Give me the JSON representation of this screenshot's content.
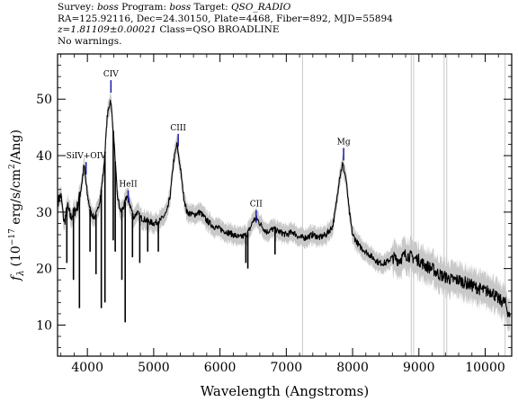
{
  "header": {
    "line1": {
      "survey_label": "Survey:",
      "survey_value": "boss",
      "program_label": "Program:",
      "program_value": "boss",
      "target_label": "Target:",
      "target_value": "QSO_RADIO"
    },
    "line2": "RA=125.92116, Dec=24.30150, Plate=4468, Fiber=892, MJD=55894",
    "line3": {
      "redshift": "z=1.81109±0.00021",
      "class_text": "Class=QSO BROADLINE"
    },
    "line4": "No warnings."
  },
  "chart_data": {
    "type": "line",
    "title": "",
    "xlabel": "Wavelength (Angstroms)",
    "ylabel": "f_λ (10^-17 erg/s/cm^2/Ang)",
    "ylabel_parts": {
      "f": "f",
      "sub": "λ",
      "pre": "(10",
      "exp1": "−17",
      "mid": " erg/s/cm",
      "exp2": "2",
      "post": "/Ang)"
    },
    "xlim": [
      3550,
      10400
    ],
    "ylim": [
      4.5,
      58
    ],
    "x_ticks": [
      4000,
      5000,
      6000,
      7000,
      8000,
      9000,
      10000
    ],
    "x_tick_labels": [
      "4000",
      "5000",
      "6000",
      "7000",
      "8000",
      "9000",
      "10000"
    ],
    "y_ticks": [
      10,
      20,
      30,
      40,
      50
    ],
    "y_tick_labels": [
      "10",
      "20",
      "30",
      "40",
      "50"
    ],
    "grid": false,
    "line_color": "#000000",
    "error_color": "#c8c8c8",
    "marker_color": "#1a1aa8",
    "series": [
      {
        "x": [
          3560,
          3600,
          3650,
          3700,
          3750,
          3800,
          3850,
          3900,
          3950,
          4000,
          4050,
          4100,
          4150,
          4200,
          4250,
          4300,
          4350,
          4400,
          4450,
          4500,
          4550,
          4600,
          4650,
          4700,
          4750,
          4800,
          4900,
          5000,
          5100,
          5200,
          5250,
          5300,
          5350,
          5400,
          5450,
          5500,
          5600,
          5700,
          5800,
          5900,
          6000,
          6100,
          6200,
          6300,
          6400,
          6450,
          6500,
          6550,
          6600,
          6700,
          6800,
          6900,
          7000,
          7100,
          7200,
          7300,
          7400,
          7500,
          7600,
          7700,
          7750,
          7800,
          7850,
          7900,
          7950,
          8000,
          8100,
          8200,
          8300,
          8400,
          8500,
          8600,
          8700,
          8800,
          8900,
          9000,
          9100,
          9200,
          9300,
          9400,
          9500,
          9600,
          9700,
          9800,
          9900,
          10000,
          10100,
          10200,
          10300,
          10380
        ],
        "values": [
          32,
          33,
          28,
          31,
          29,
          30,
          31,
          34,
          38,
          33,
          30,
          29,
          30,
          33,
          38,
          47,
          50,
          43,
          33,
          30,
          31,
          33,
          31,
          29,
          30,
          29,
          28.5,
          28,
          28.5,
          30,
          33,
          39,
          42,
          38,
          33,
          30,
          29.5,
          30,
          28.5,
          27.5,
          27,
          26.5,
          26,
          25.5,
          26,
          27,
          28.5,
          29,
          28,
          26.5,
          27,
          26.5,
          26,
          26.5,
          25.5,
          25.5,
          26,
          25.5,
          26,
          27.5,
          31,
          36,
          38.5,
          36,
          30,
          26,
          24,
          23,
          22,
          21,
          21,
          22,
          21.5,
          22.5,
          22,
          21.5,
          20.5,
          20,
          19,
          18.5,
          18,
          18,
          17.5,
          17,
          16.5,
          16,
          16,
          14.5,
          14,
          11
        ]
      }
    ],
    "absorption_lines": [
      {
        "x": 3690,
        "depth_to": 21
      },
      {
        "x": 3790,
        "depth_to": 18
      },
      {
        "x": 3880,
        "depth_to": 13
      },
      {
        "x": 4040,
        "depth_to": 23
      },
      {
        "x": 4130,
        "depth_to": 19
      },
      {
        "x": 4210,
        "depth_to": 13
      },
      {
        "x": 4265,
        "depth_to": 14
      },
      {
        "x": 4390,
        "depth_to": 25
      },
      {
        "x": 4420,
        "depth_to": 23
      },
      {
        "x": 4520,
        "depth_to": 18
      },
      {
        "x": 4570,
        "depth_to": 10.5
      },
      {
        "x": 4680,
        "depth_to": 22
      },
      {
        "x": 4790,
        "depth_to": 21
      },
      {
        "x": 4910,
        "depth_to": 23
      },
      {
        "x": 5070,
        "depth_to": 23
      },
      {
        "x": 6390,
        "depth_to": 21
      },
      {
        "x": 6420,
        "depth_to": 20
      },
      {
        "x": 6830,
        "depth_to": 22.5
      }
    ],
    "sky_lines": [
      7245,
      8885,
      8920,
      9380,
      9420,
      10300
    ],
    "annotations": [
      {
        "label": "SiIV+OIV",
        "x": 3980,
        "y": 39.5
      },
      {
        "label": "CIV",
        "x": 4355,
        "y": 54
      },
      {
        "label": "HeII",
        "x": 4615,
        "y": 34.5
      },
      {
        "label": "CIII",
        "x": 5370,
        "y": 44.5
      },
      {
        "label": "CII",
        "x": 6545,
        "y": 31
      },
      {
        "label": "Mg",
        "x": 7865,
        "y": 42
      }
    ]
  }
}
